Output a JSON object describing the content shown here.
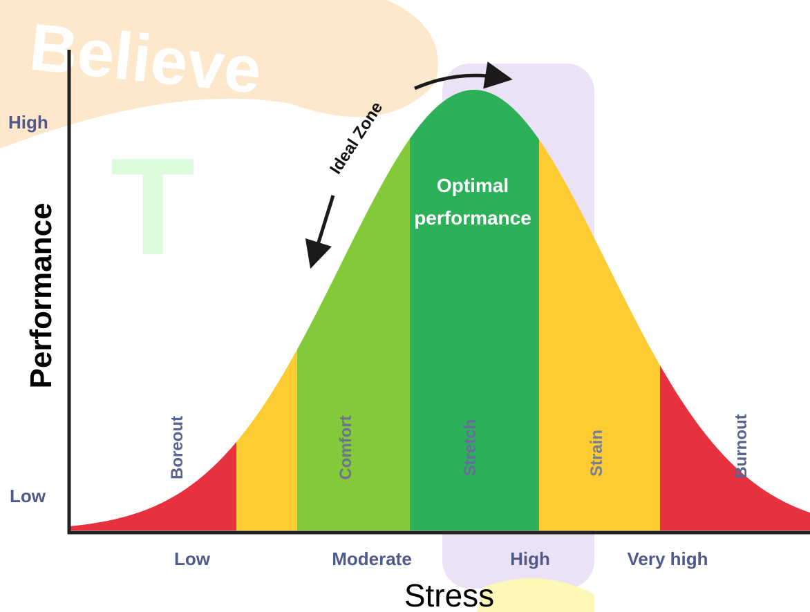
{
  "watermark": [
    "Believe",
    "T"
  ],
  "y_axis": {
    "title": "Performance",
    "labels": [
      "High",
      "Low"
    ]
  },
  "x_axis": {
    "title": "Stress",
    "labels": [
      "Low",
      "Moderate",
      "High",
      "Very high"
    ]
  },
  "zones": [
    "Boreout",
    "Comfort",
    "Stretch",
    "Strain",
    "Burnout"
  ],
  "annotations": {
    "ideal_zone": "Ideal Zone",
    "optimal": [
      "Optimal",
      "performance"
    ]
  }
}
